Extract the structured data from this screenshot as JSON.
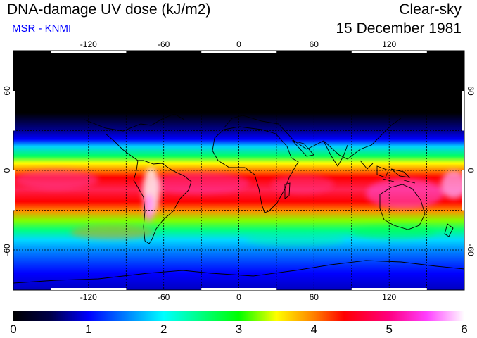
{
  "header": {
    "title": "DNA-damage UV dose (kJ/m2)",
    "source": "MSR - KNMI",
    "sky_condition": "Clear-sky",
    "date": "15 December 1981"
  },
  "map": {
    "lon_ticks": [
      "-120",
      "-60",
      "0",
      "60",
      "120"
    ],
    "lat_ticks": [
      "60",
      "0",
      "-60"
    ],
    "colors": {
      "ocean_base": "#000000",
      "coastline": "#000000",
      "grid": "#000000"
    }
  },
  "colorbar": {
    "min": 0,
    "max": 6,
    "tick_labels": [
      "0",
      "1",
      "2",
      "3",
      "4",
      "5",
      "6"
    ],
    "stops": [
      {
        "value": 0,
        "color": "#000000"
      },
      {
        "value": 0.5,
        "color": "#00004a"
      },
      {
        "value": 1,
        "color": "#0000ff"
      },
      {
        "value": 1.5,
        "color": "#0080ff"
      },
      {
        "value": 2,
        "color": "#00ffff"
      },
      {
        "value": 2.5,
        "color": "#00ff80"
      },
      {
        "value": 3,
        "color": "#00ff00"
      },
      {
        "value": 3.5,
        "color": "#ffff00"
      },
      {
        "value": 4,
        "color": "#ff8000"
      },
      {
        "value": 4.4,
        "color": "#ff0000"
      },
      {
        "value": 5,
        "color": "#ff0080"
      },
      {
        "value": 5.5,
        "color": "#ff40ff"
      },
      {
        "value": 6,
        "color": "#ffffff"
      }
    ]
  }
}
